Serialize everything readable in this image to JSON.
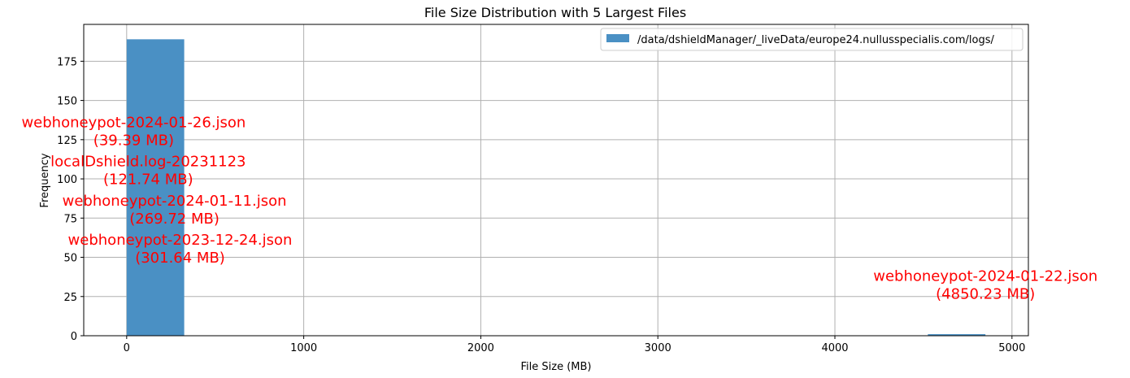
{
  "chart_data": {
    "type": "bar",
    "title": "File Size Distribution with 5 Largest Files",
    "xlabel": "File Size (MB)",
    "ylabel": "Frequency",
    "xlim": [
      -242.5,
      5092.7
    ],
    "ylim": [
      0,
      198.5
    ],
    "xticks": [
      0,
      1000,
      2000,
      3000,
      4000,
      5000
    ],
    "yticks": [
      0,
      25,
      50,
      75,
      100,
      125,
      150,
      175
    ],
    "grid": true,
    "legend_position": "top-right",
    "series": [
      {
        "name": "/data/dshieldManager/_liveData/europe24.nullusspecialis.com/logs/",
        "color": "#4a90c4",
        "bins": [
          {
            "x0": 0,
            "x1": 325,
            "count": 189
          },
          {
            "x0": 4525,
            "x1": 4850,
            "count": 1
          }
        ]
      }
    ],
    "annotations": [
      {
        "file": "webhoneypot-2024-01-26.json",
        "size": "(39.39 MB)",
        "x": 39.39,
        "y": 133
      },
      {
        "file": "localDshield.log-20231123",
        "size": "(121.74 MB)",
        "x": 121.74,
        "y": 108
      },
      {
        "file": "webhoneypot-2024-01-11.json",
        "size": "(269.72 MB)",
        "x": 269.72,
        "y": 83
      },
      {
        "file": "webhoneypot-2023-12-24.json",
        "size": "(301.64 MB)",
        "x": 301.64,
        "y": 58
      },
      {
        "file": "webhoneypot-2024-01-22.json",
        "size": "(4850.23 MB)",
        "x": 4850.23,
        "y": 35
      }
    ]
  }
}
